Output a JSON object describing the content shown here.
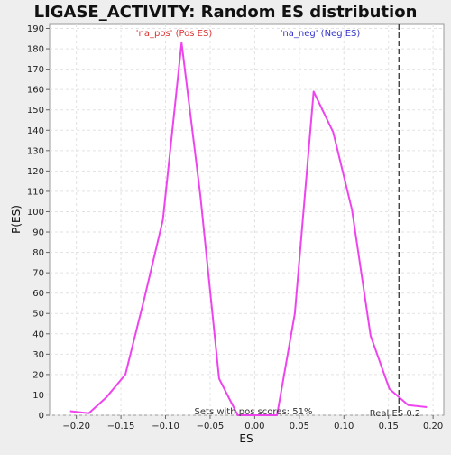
{
  "chart_data": {
    "type": "line",
    "title": "LIGASE_ACTIVITY: Random ES distribution",
    "xlabel": "ES",
    "ylabel": "P(ES)",
    "xlim": [
      -0.23,
      0.212
    ],
    "ylim": [
      0,
      192
    ],
    "x_ticks": [
      -0.2,
      -0.15,
      -0.1,
      -0.05,
      0.0,
      0.05,
      0.1,
      0.15,
      0.2
    ],
    "x_tick_labels": [
      "−0.20",
      "−0.15",
      "−0.10",
      "−0.05",
      "0.00",
      "0.05",
      "0.10",
      "0.15",
      "0.20"
    ],
    "y_ticks": [
      0,
      10,
      20,
      30,
      40,
      50,
      60,
      70,
      80,
      90,
      100,
      110,
      120,
      130,
      140,
      150,
      160,
      170,
      180,
      190
    ],
    "grid": true,
    "series": [
      {
        "color": "#ee44ee",
        "x": [
          -0.207,
          -0.186,
          -0.166,
          -0.145,
          -0.124,
          -0.103,
          -0.082,
          -0.061,
          -0.04,
          -0.019,
          0.003,
          0.025,
          0.045,
          0.066,
          0.088,
          0.109,
          0.13,
          0.151,
          0.172,
          0.193
        ],
        "y": [
          2,
          1,
          9,
          20,
          57,
          96,
          183,
          108,
          18,
          0,
          0,
          0,
          50,
          159,
          139,
          101,
          39,
          13,
          5,
          4
        ]
      }
    ],
    "reference_line": {
      "x": 0.162,
      "label": "Real ES 0.2",
      "color": "#444444"
    },
    "annotations": {
      "pos_label": "'na_pos' (Pos ES)",
      "pos_color": "#dd3333",
      "neg_label": "'na_neg' (Neg ES)",
      "neg_color": "#3333cc",
      "sets_text": "Sets with pos scores: 51%"
    }
  }
}
